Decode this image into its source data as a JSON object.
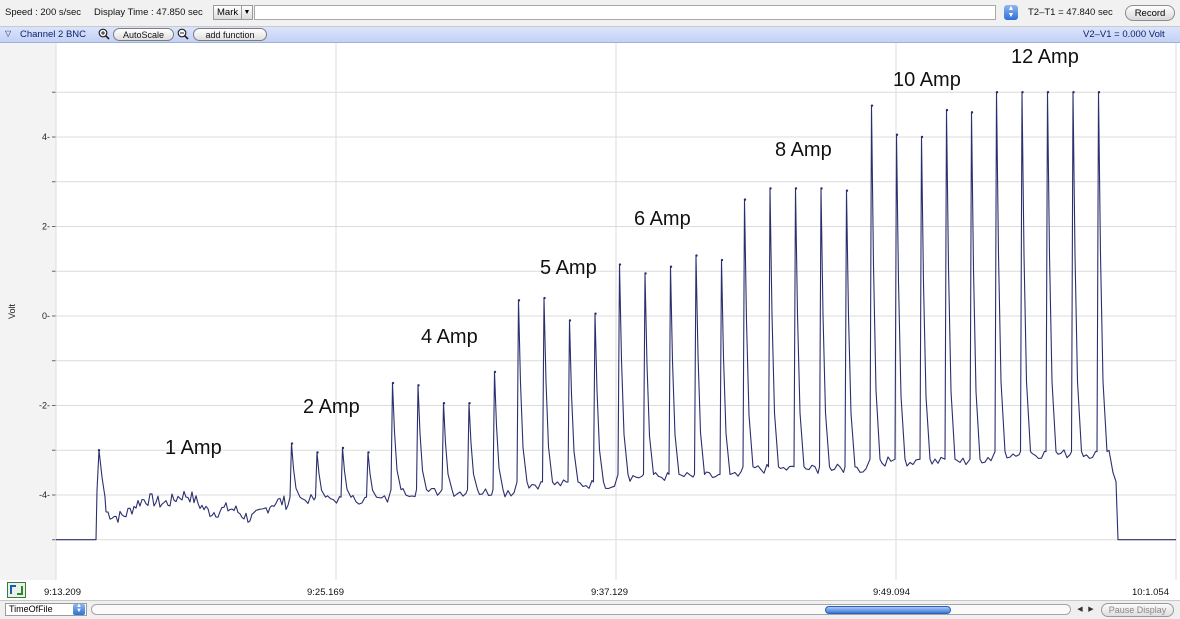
{
  "toolbar": {
    "speed": "Speed : 200 s/sec",
    "display_time": "Display Time : 47.850 sec",
    "mark_label": "Mark",
    "t_delta": "T2–T1 = 47.840 sec",
    "record_label": "Record"
  },
  "channel": {
    "name": "Channel 2 BNC",
    "autoscale_label": "AutoScale",
    "add_function_label": "add function",
    "v_delta": "V2–V1 = 0.000 Volt"
  },
  "chart_data": {
    "type": "line",
    "ylabel": "Volt",
    "xlabel": "",
    "ylim": [
      -5.9,
      6.1
    ],
    "yticks": [
      "4-",
      "2-",
      "0-",
      "-2-",
      "-4-"
    ],
    "ytick_values": [
      4,
      2,
      0,
      -2,
      -4
    ],
    "x_tick_labels": [
      "9:13.209",
      "9:25.169",
      "9:37.129",
      "9:49.094",
      "10:1.054"
    ],
    "x_tick_fractions": [
      0,
      0.25,
      0.5,
      0.75,
      1
    ],
    "baseline": -5.0,
    "grid": true,
    "groups": [
      {
        "label": "1 Amp",
        "peaks": [
          -3.0
        ]
      },
      {
        "label": "2 Amp",
        "peaks": [
          -2.85,
          -3.05,
          -2.95,
          -3.05
        ]
      },
      {
        "label": "4 Amp",
        "peaks": [
          -1.5,
          -1.55,
          -1.95,
          -1.95,
          -1.25
        ]
      },
      {
        "label": "5 Amp",
        "peaks": [
          0.35,
          0.4,
          -0.1,
          0.05
        ]
      },
      {
        "label": "6 Amp",
        "peaks": [
          1.15,
          0.95,
          1.1,
          1.35,
          1.25
        ]
      },
      {
        "label": "8 Amp",
        "peaks": [
          2.6,
          2.85,
          2.85,
          2.85,
          2.8
        ]
      },
      {
        "label": "10 Amp",
        "peaks": [
          4.7,
          4.05,
          4.0,
          4.6,
          4.55
        ]
      },
      {
        "label": "12 Amp",
        "peaks": [
          5.0,
          5.0,
          5.0,
          5.0,
          5.0
        ]
      }
    ]
  },
  "bottom": {
    "timeoffile_label": "TimeOfFile",
    "pause_label": "Pause Display",
    "scroll_position": 0.86
  },
  "colors": {
    "trace": "#2b2f6e",
    "grid": "#dcdcdc",
    "channel_bar": "#c8d5f6"
  }
}
